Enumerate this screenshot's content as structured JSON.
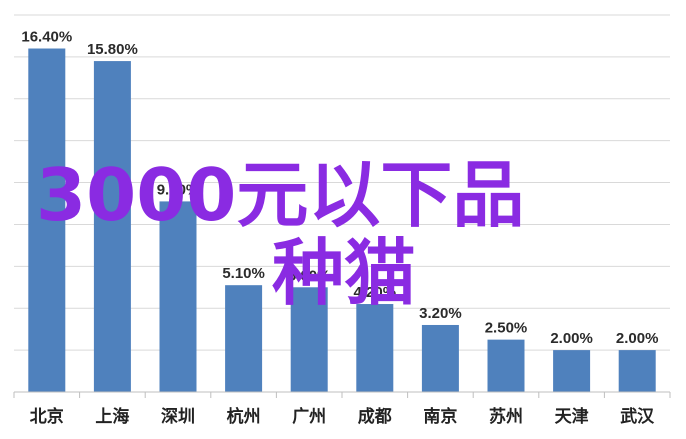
{
  "chart_data": {
    "type": "bar",
    "categories": [
      "北京",
      "上海",
      "深圳",
      "杭州",
      "广州",
      "成都",
      "南京",
      "苏州",
      "天津",
      "武汉"
    ],
    "values": [
      16.4,
      15.8,
      9.1,
      5.1,
      5.0,
      4.2,
      3.2,
      2.5,
      2.0,
      2.0
    ],
    "data_labels": [
      "16.40%",
      "15.80%",
      "9.10%",
      "5.10%",
      "5.00%",
      "4.20%",
      "3.20%",
      "2.50%",
      "2.00%",
      "2.00%"
    ],
    "ylim": [
      0,
      18
    ],
    "grid": true,
    "legend": "none",
    "bar_color": "#4f81bd",
    "grid_color": "#d9d9d9"
  },
  "watermark": {
    "line1": "3000元以下品",
    "line2": "种猫",
    "color": "#8a2be2"
  }
}
